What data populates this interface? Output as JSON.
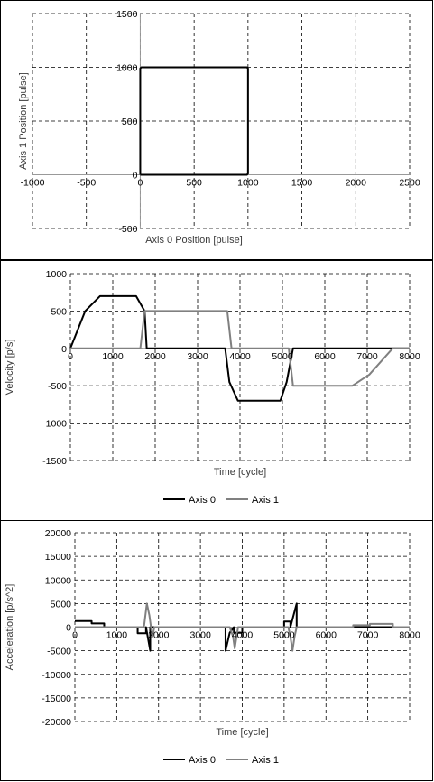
{
  "chart_data": [
    {
      "id": "xy",
      "type": "line",
      "xlabel": "Axis 0 Position [pulse]",
      "ylabel": "Axis 1 Position [pulse]",
      "xlim": [
        -1000,
        2500
      ],
      "ylim": [
        -500,
        1500
      ],
      "xticks": [
        -1000,
        -500,
        0,
        500,
        1000,
        1500,
        2000,
        2500
      ],
      "yticks": [
        -500,
        0,
        500,
        1000,
        1500
      ],
      "grid": true,
      "legend": "none",
      "series": [
        {
          "color": "#000000",
          "x": [
            0,
            990,
            1000,
            1000,
            990,
            10,
            0,
            0
          ],
          "y": [
            0,
            0,
            10,
            990,
            1000,
            1000,
            990,
            0
          ]
        }
      ]
    },
    {
      "id": "velocity",
      "type": "line",
      "xlabel": "Time [cycle]",
      "ylabel": "Velocity [p/s]",
      "xlim": [
        0,
        8000
      ],
      "ylim": [
        -1500,
        1000
      ],
      "xticks": [
        0,
        1000,
        2000,
        3000,
        4000,
        5000,
        6000,
        7000,
        8000
      ],
      "yticks": [
        -1500,
        -1000,
        -500,
        0,
        500,
        1000
      ],
      "grid": true,
      "legend": "bottom",
      "series": [
        {
          "name": "Axis 0",
          "color": "#000000",
          "x": [
            0,
            350,
            700,
            1550,
            1750,
            1800,
            3650,
            3750,
            3950,
            4950,
            5100,
            5250,
            7600,
            8000
          ],
          "y": [
            0,
            500,
            700,
            700,
            500,
            0,
            0,
            -450,
            -700,
            -700,
            -450,
            0,
            0,
            0
          ]
        },
        {
          "name": "Axis 1",
          "color": "#808080",
          "x": [
            0,
            1650,
            1750,
            3700,
            3800,
            5150,
            5250,
            6650,
            7050,
            7600,
            8000
          ],
          "y": [
            0,
            0,
            500,
            500,
            0,
            0,
            -500,
            -500,
            -350,
            0,
            0
          ]
        }
      ]
    },
    {
      "id": "acceleration",
      "type": "line",
      "xlabel": "Time [cycle]",
      "ylabel": "Acceleration [p/s^2]",
      "xlim": [
        0,
        8000
      ],
      "ylim": [
        -20000,
        20000
      ],
      "xticks": [
        0,
        1000,
        2000,
        3000,
        4000,
        5000,
        6000,
        7000,
        8000
      ],
      "yticks": [
        -20000,
        -15000,
        -10000,
        -5000,
        0,
        5000,
        10000,
        15000,
        20000
      ],
      "grid": true,
      "legend": "bottom",
      "series": [
        {
          "name": "Axis 0",
          "color": "#000000",
          "x": [
            0,
            400,
            400,
            700,
            700,
            1500,
            1500,
            1700,
            1700,
            1800,
            1800,
            3600,
            3600,
            3700,
            3700,
            3800,
            3800,
            4000,
            4000,
            5000,
            5000,
            5150,
            5150,
            5300,
            5300,
            8000
          ],
          "y": [
            1300,
            1300,
            800,
            800,
            0,
            0,
            -1300,
            -1300,
            0,
            -5000,
            0,
            0,
            -5000,
            -1200,
            -1200,
            0,
            -1200,
            -1200,
            0,
            0,
            1200,
            1200,
            0,
            5000,
            0,
            0
          ]
        },
        {
          "name": "Axis 1",
          "color": "#808080",
          "x": [
            0,
            1650,
            1720,
            1780,
            1850,
            1900,
            3700,
            3780,
            3820,
            3900,
            5100,
            5150,
            5200,
            5250,
            5300,
            6650,
            6650,
            7050,
            7050,
            7600,
            7600,
            8000
          ],
          "y": [
            0,
            0,
            5000,
            2500,
            -2000,
            0,
            0,
            -2000,
            -4500,
            0,
            0,
            -2000,
            -5000,
            -2000,
            0,
            0,
            400,
            400,
            700,
            700,
            0,
            0
          ]
        }
      ]
    }
  ]
}
